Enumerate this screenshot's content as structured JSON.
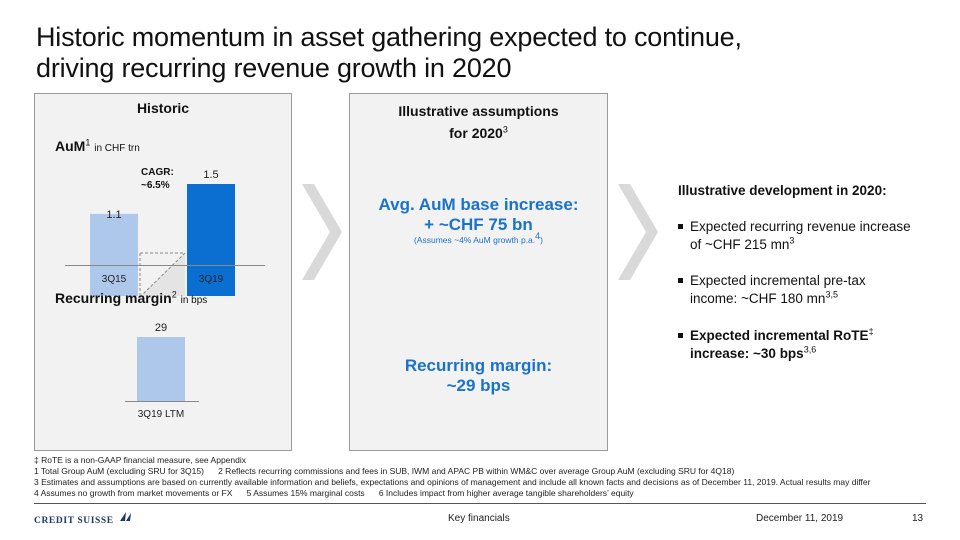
{
  "title": {
    "line1": "Historic momentum in asset gathering expected to continue,",
    "line2": "driving recurring revenue growth in 2020"
  },
  "historic": {
    "heading": "Historic",
    "aum_label": "AuM",
    "aum_sup": "1",
    "aum_unit": "in CHF trn",
    "cagr_line1": "CAGR:",
    "cagr_line2": "~6.5%",
    "margin_label": "Recurring margin",
    "margin_sup": "2",
    "margin_unit": "in bps"
  },
  "chart_data": [
    {
      "type": "bar",
      "title": "AuM in CHF trn",
      "categories": [
        "3Q15",
        "3Q19"
      ],
      "values": [
        1.1,
        1.5
      ],
      "value_labels": [
        "1.1",
        "1.5"
      ],
      "colors": [
        "#adc8ea",
        "#0b6fd1"
      ],
      "annotation": "CAGR: ~6.5%",
      "ylim": [
        0,
        1.5
      ]
    },
    {
      "type": "bar",
      "title": "Recurring margin in bps",
      "categories": [
        "3Q19 LTM"
      ],
      "values": [
        29
      ],
      "value_labels": [
        "29"
      ],
      "colors": [
        "#adc8ea"
      ],
      "ylim": [
        0,
        29
      ]
    }
  ],
  "assumptions": {
    "heading_line1": "Illustrative assumptions",
    "heading_line2": "for 2020",
    "heading_sup": "3",
    "aum_line1": "Avg. AuM base increase:",
    "aum_line2": "+ ~CHF 75 bn",
    "aum_note": "(Assumes ~4% AuM growth p.a.",
    "aum_note_sup": "4",
    "aum_note_end": ")",
    "margin_line1": "Recurring margin:",
    "margin_line2": "~29 bps"
  },
  "development": {
    "heading": "Illustrative development in 2020:",
    "b1_line1": "Expected recurring revenue increase",
    "b1_line2": "of ~CHF 215 mn",
    "b1_sup": "3",
    "b2_line1": "Expected incremental pre-tax",
    "b2_line2": "income: ~CHF 180 mn",
    "b2_sup": "3,5",
    "b3_line1": "Expected incremental RoTE",
    "b3_sup1": "‡",
    "b3_line2": "increase: ~30 bps",
    "b3_sup2": "3,6"
  },
  "footnotes": {
    "f0": "‡ RoTE is a non-GAAP financial measure, see Appendix",
    "f1": "1 Total Group AuM (excluding SRU for 3Q15)      2 Reflects recurring commissions and fees in SUB, IWM and APAC PB within WM&C over average Group AuM (excluding SRU for 4Q18)",
    "f2": "3 Estimates and assumptions are based on currently available information and beliefs, expectations and opinions of management and include all known facts and decisions as of December 11, 2019. Actual results may differ",
    "f3": "4 Assumes no growth from market movements or FX      5 Assumes 15% marginal costs      6 Includes impact from higher average tangible shareholders’ equity"
  },
  "footer": {
    "logo": "CREDIT SUISSE",
    "center": "Key financials",
    "date": "December 11, 2019",
    "page": "13"
  },
  "colors": {
    "accent_blue": "#1a73c9",
    "bar_dark": "#0b6fd1",
    "bar_light": "#adc8ea",
    "panel_bg": "#f2f2f2"
  }
}
